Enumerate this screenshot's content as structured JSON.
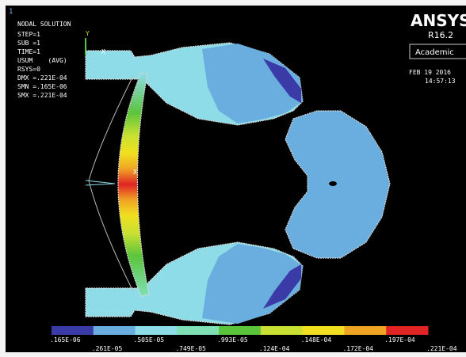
{
  "window": {
    "number": "1"
  },
  "info": {
    "title": "NODAL SOLUTION",
    "lines": [
      "STEP=1",
      "SUB =1",
      "TIME=1",
      "USUM    (AVG)",
      "RSYS=0",
      "DMX =.221E-04",
      "SMN =.165E-06",
      "SMX =.221E-04"
    ]
  },
  "branding": {
    "product": "ANSYS",
    "release": "R16.2",
    "license": "Academic",
    "date": "FEB 19 2016",
    "time": "14:57:13"
  },
  "triad": {
    "y_label": "Y",
    "x_label": "X"
  },
  "model": {
    "node_label": "X"
  },
  "legend": {
    "labels": [
      ".165E-06",
      ".261E-05",
      ".505E-05",
      ".749E-05",
      ".993E-05",
      ".124E-04",
      ".148E-04",
      ".172E-04",
      ".197E-04",
      ".221E-04"
    ],
    "colors": [
      "#3b3ba8",
      "#6aaee0",
      "#8edce8",
      "#7ee0b4",
      "#5cc43c",
      "#c8e032",
      "#f0e020",
      "#f0a424",
      "#e02424"
    ]
  }
}
